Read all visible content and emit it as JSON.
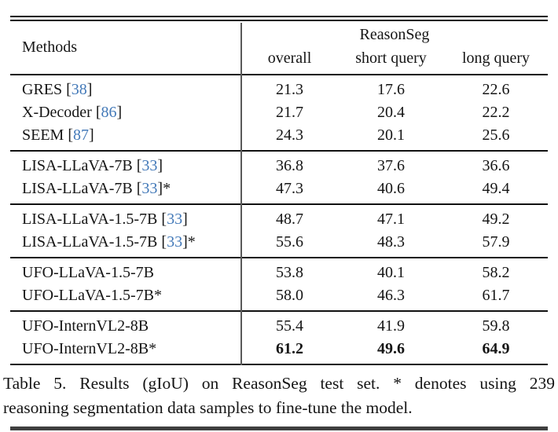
{
  "table": {
    "header": {
      "methods_label": "Methods",
      "group_label": "ReasonSeg",
      "columns": [
        "overall",
        "short query",
        "long query"
      ]
    },
    "groups": [
      {
        "rows": [
          {
            "method": "GRES",
            "cite": "38",
            "star": false,
            "bold": false,
            "values": [
              "21.3",
              "17.6",
              "22.6"
            ]
          },
          {
            "method": "X-Decoder",
            "cite": "86",
            "star": false,
            "bold": false,
            "values": [
              "21.7",
              "20.4",
              "22.2"
            ]
          },
          {
            "method": "SEEM",
            "cite": "87",
            "star": false,
            "bold": false,
            "values": [
              "24.3",
              "20.1",
              "25.6"
            ]
          }
        ]
      },
      {
        "rows": [
          {
            "method": "LISA-LLaVA-7B",
            "cite": "33",
            "star": false,
            "bold": false,
            "values": [
              "36.8",
              "37.6",
              "36.6"
            ]
          },
          {
            "method": "LISA-LLaVA-7B",
            "cite": "33",
            "star": true,
            "bold": false,
            "values": [
              "47.3",
              "40.6",
              "49.4"
            ]
          }
        ]
      },
      {
        "rows": [
          {
            "method": "LISA-LLaVA-1.5-7B",
            "cite": "33",
            "star": false,
            "bold": false,
            "values": [
              "48.7",
              "47.1",
              "49.2"
            ]
          },
          {
            "method": "LISA-LLaVA-1.5-7B",
            "cite": "33",
            "star": true,
            "bold": false,
            "values": [
              "55.6",
              "48.3",
              "57.9"
            ]
          }
        ]
      },
      {
        "rows": [
          {
            "method": "UFO-LLaVA-1.5-7B",
            "cite": null,
            "star": false,
            "bold": false,
            "values": [
              "53.8",
              "40.1",
              "58.2"
            ]
          },
          {
            "method": "UFO-LLaVA-1.5-7B",
            "cite": null,
            "star": true,
            "bold": false,
            "values": [
              "58.0",
              "46.3",
              "61.7"
            ]
          }
        ]
      },
      {
        "rows": [
          {
            "method": "UFO-InternVL2-8B",
            "cite": null,
            "star": false,
            "bold": false,
            "values": [
              "55.4",
              "41.9",
              "59.8"
            ]
          },
          {
            "method": "UFO-InternVL2-8B",
            "cite": null,
            "star": true,
            "bold": true,
            "values": [
              "61.2",
              "49.6",
              "64.9"
            ]
          }
        ]
      }
    ]
  },
  "caption": {
    "line1": "Table 5. Results (gIoU) on ReasonSeg test set. * denotes using 239",
    "line2": "reasoning segmentation data samples to fine-tune the model."
  },
  "colors": {
    "cite_blue": "#4379b8",
    "rule_black": "#111111"
  }
}
